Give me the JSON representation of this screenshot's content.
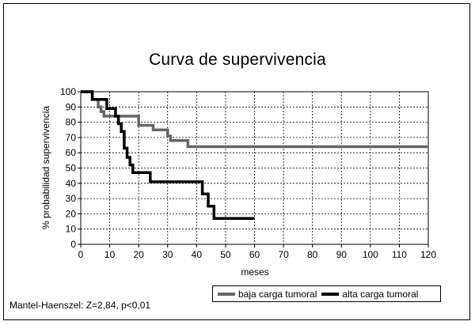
{
  "chart_data": {
    "type": "line",
    "title": "Curva de supervivencia",
    "xlabel": "meses",
    "ylabel": "% probabilidad supervivencia",
    "xlim": [
      0,
      120
    ],
    "ylim": [
      0,
      100
    ],
    "xticks": [
      0,
      10,
      20,
      30,
      40,
      50,
      60,
      70,
      80,
      90,
      100,
      110,
      120
    ],
    "yticks": [
      0,
      10,
      20,
      30,
      40,
      50,
      60,
      70,
      80,
      90,
      100
    ],
    "grid": true,
    "step": true,
    "legend_position": "bottom-right",
    "series": [
      {
        "name": "baja carga tumoral",
        "color": "#666666",
        "points": [
          [
            0,
            100
          ],
          [
            4,
            100
          ],
          [
            4,
            95
          ],
          [
            6,
            95
          ],
          [
            6,
            90
          ],
          [
            7,
            90
          ],
          [
            7,
            87
          ],
          [
            8,
            87
          ],
          [
            8,
            84
          ],
          [
            20,
            84
          ],
          [
            20,
            78
          ],
          [
            25,
            78
          ],
          [
            25,
            75
          ],
          [
            30,
            75
          ],
          [
            30,
            71
          ],
          [
            31,
            71
          ],
          [
            31,
            68
          ],
          [
            37,
            68
          ],
          [
            37,
            64
          ],
          [
            120,
            64
          ]
        ]
      },
      {
        "name": "alta carga tumoral",
        "color": "#000000",
        "points": [
          [
            0,
            100
          ],
          [
            4,
            100
          ],
          [
            4,
            95
          ],
          [
            9,
            95
          ],
          [
            9,
            89
          ],
          [
            12,
            89
          ],
          [
            12,
            84
          ],
          [
            13,
            84
          ],
          [
            13,
            79
          ],
          [
            14,
            79
          ],
          [
            14,
            74
          ],
          [
            15,
            74
          ],
          [
            15,
            63
          ],
          [
            16,
            63
          ],
          [
            16,
            57
          ],
          [
            17,
            57
          ],
          [
            17,
            52
          ],
          [
            18,
            52
          ],
          [
            18,
            47
          ],
          [
            24,
            47
          ],
          [
            24,
            41
          ],
          [
            42,
            41
          ],
          [
            42,
            33
          ],
          [
            44,
            33
          ],
          [
            44,
            25
          ],
          [
            46,
            25
          ],
          [
            46,
            17
          ],
          [
            60,
            17
          ]
        ]
      }
    ]
  },
  "annotation": "Mantel-Haenszel: Z=2,84, p<0,01"
}
